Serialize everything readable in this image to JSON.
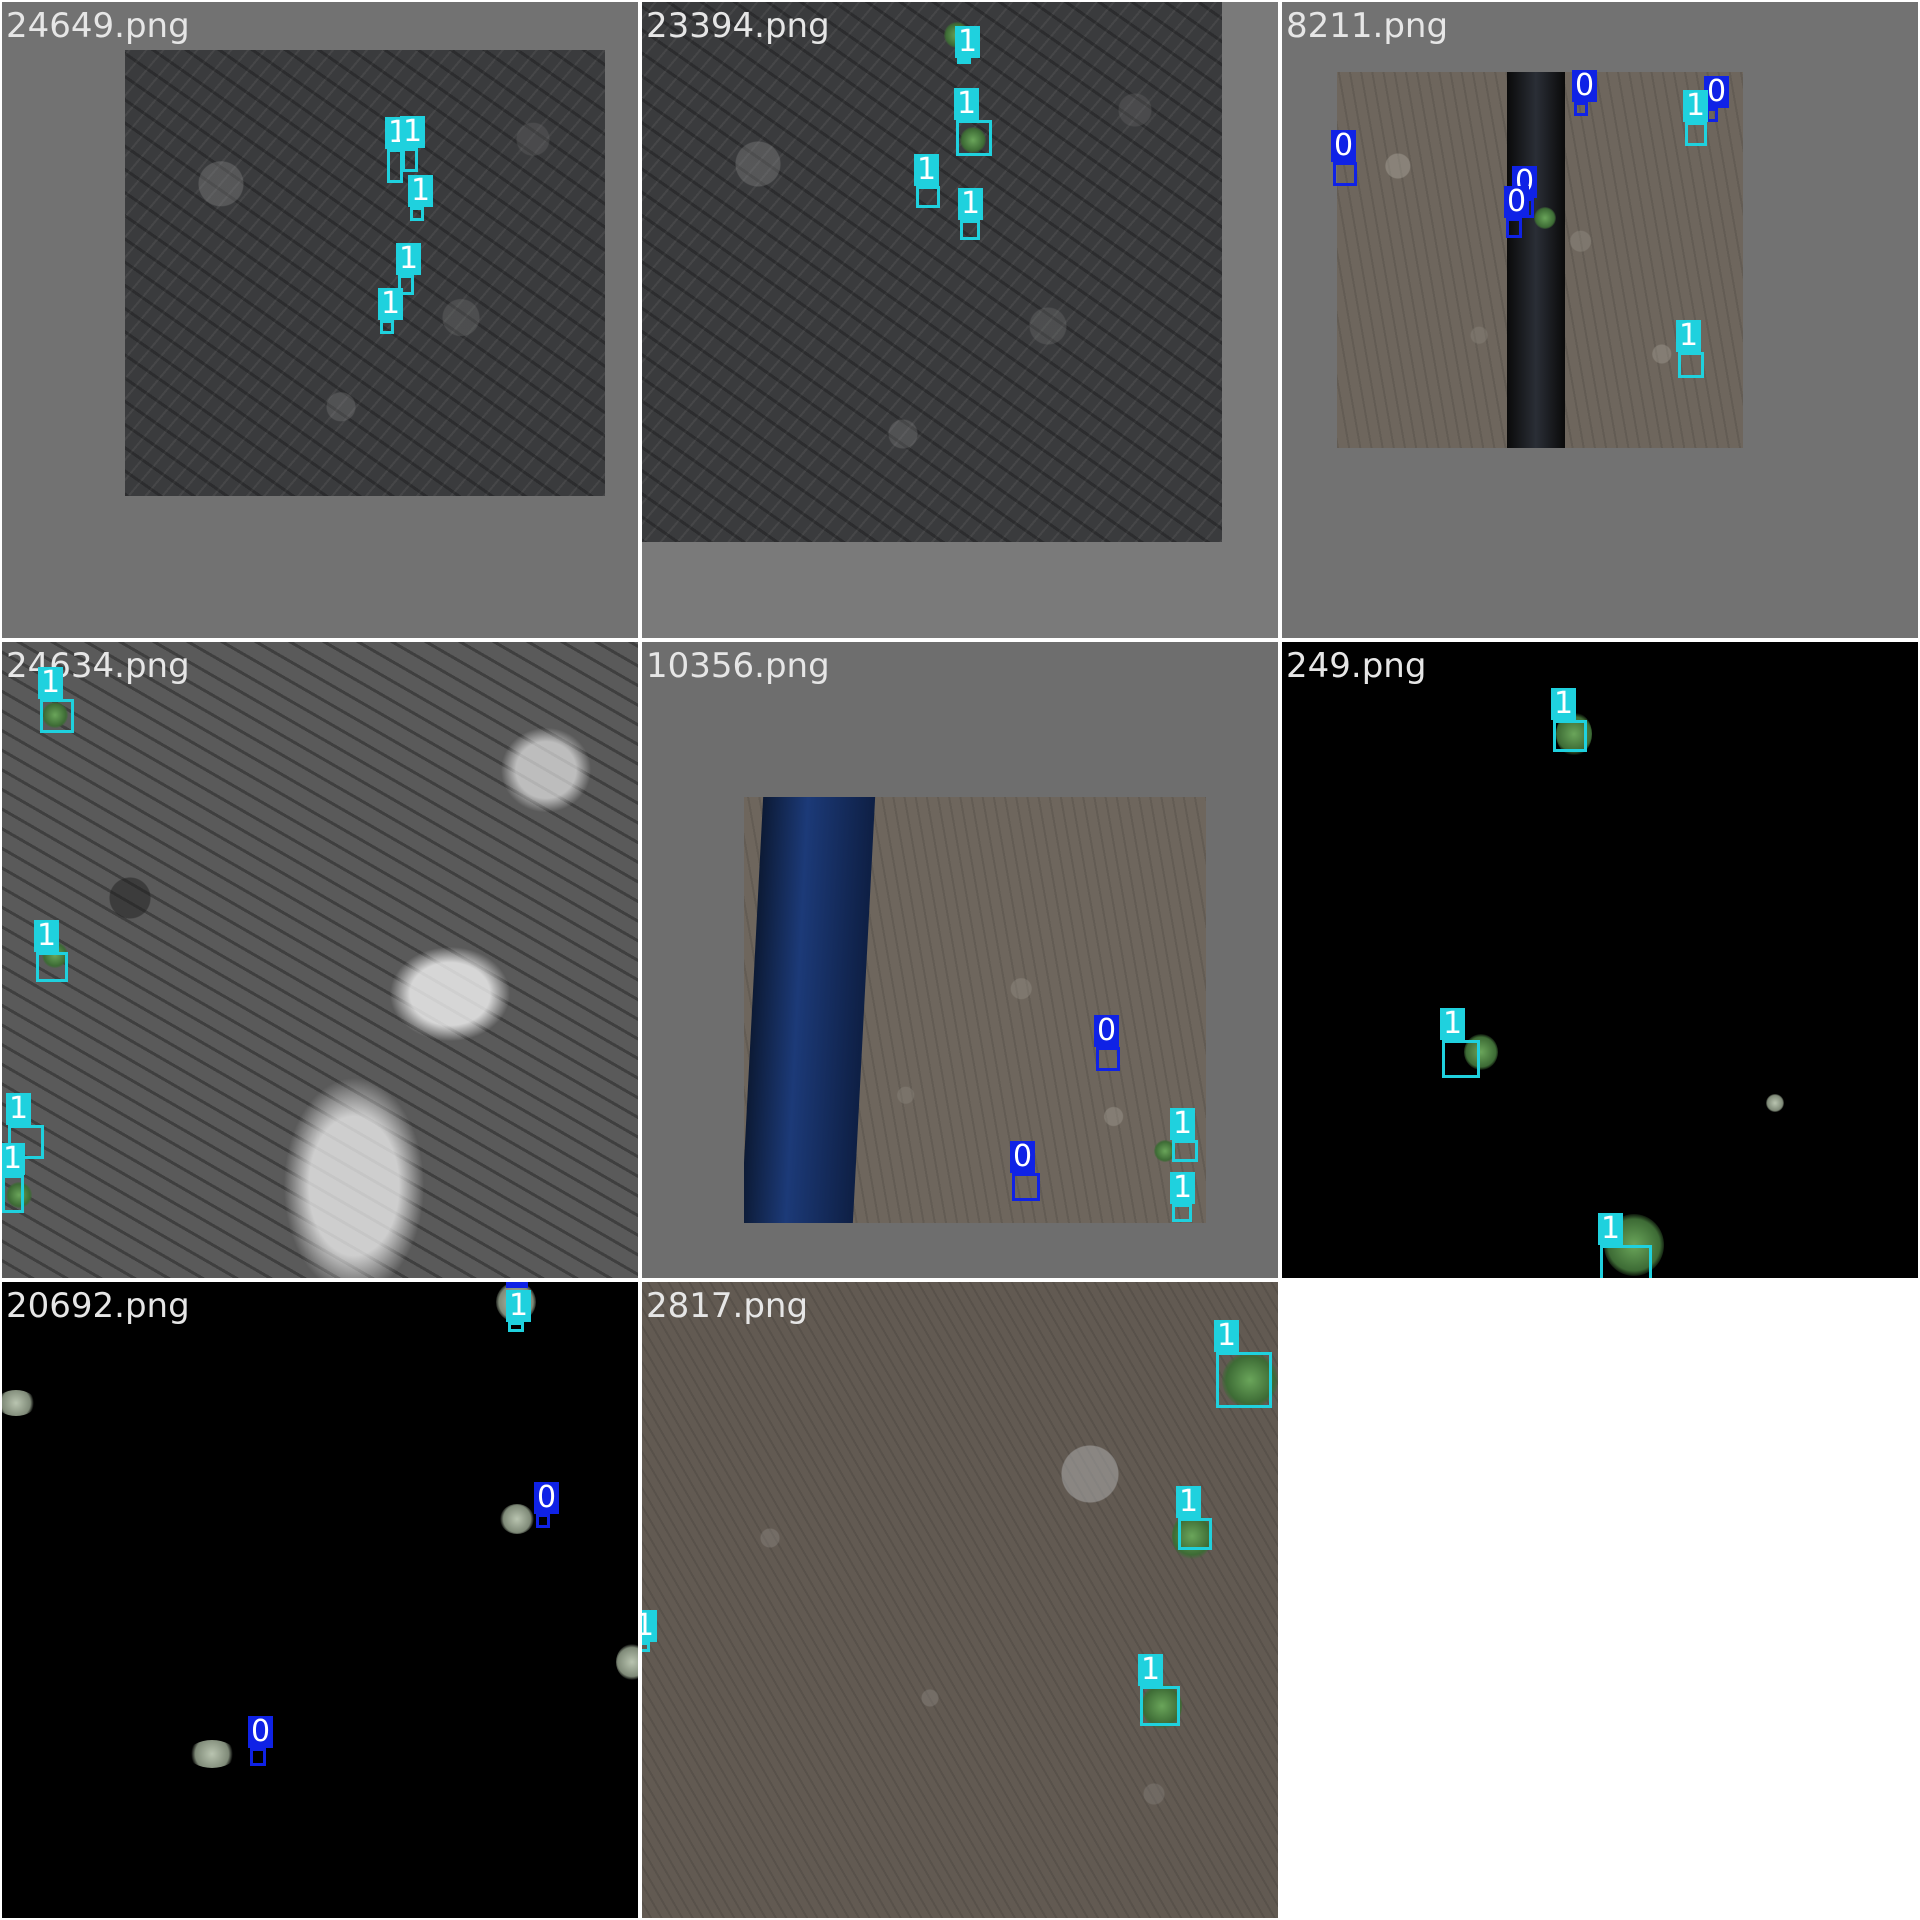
{
  "colors": {
    "class_0": "#0f22e6",
    "class_1": "#1fd1de"
  },
  "tiles": [
    {
      "filename": "24649.png"
    },
    {
      "filename": "23394.png"
    },
    {
      "filename": "8211.png"
    },
    {
      "filename": "24634.png"
    },
    {
      "filename": "10356.png"
    },
    {
      "filename": "249.png"
    },
    {
      "filename": "20692.png"
    },
    {
      "filename": "2817.png"
    }
  ],
  "labels": {
    "class_0": "0",
    "class_1": "1"
  }
}
